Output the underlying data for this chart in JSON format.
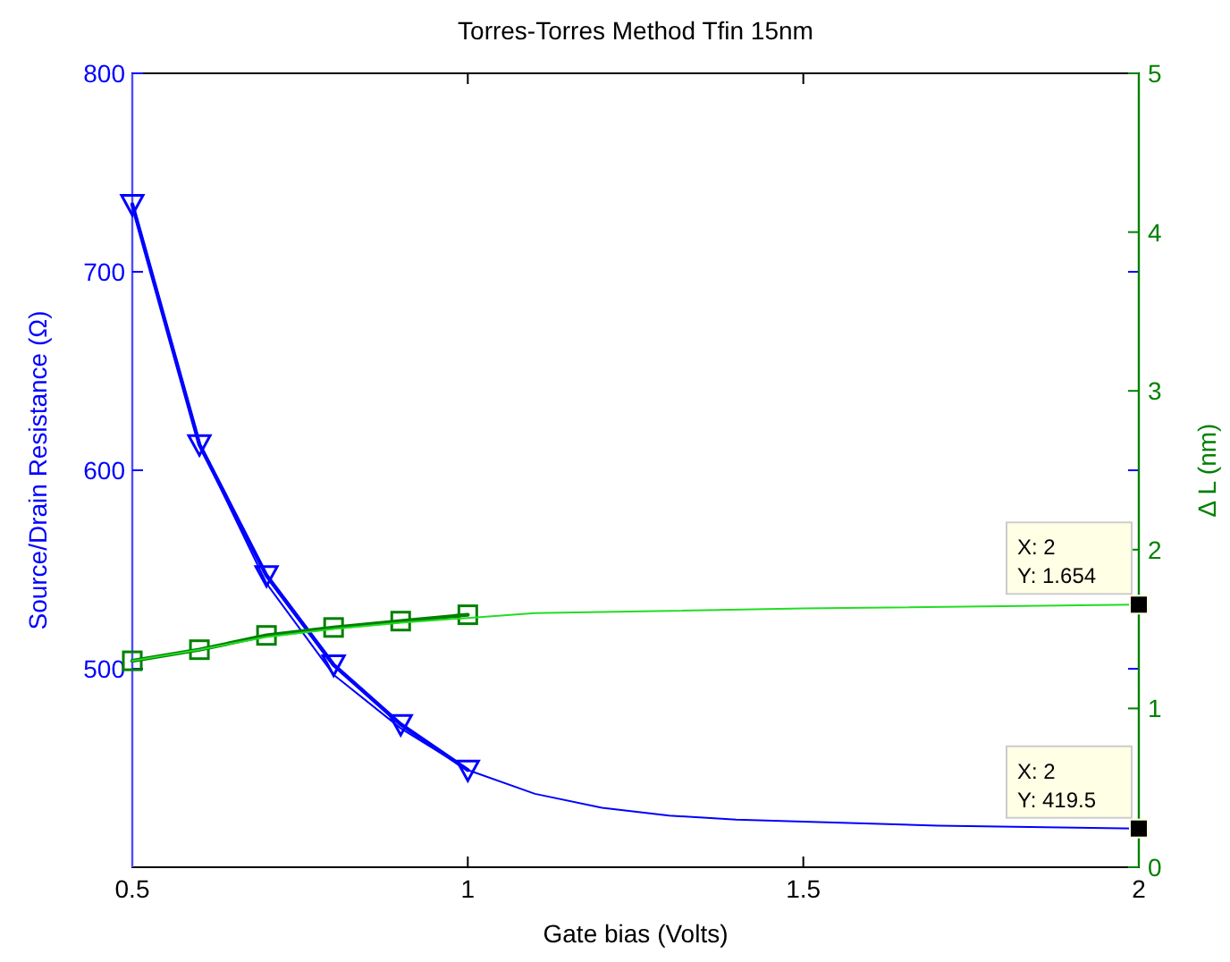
{
  "chart_data": {
    "type": "line",
    "title": "Torres-Torres Method Tfin 15nm",
    "xlabel": "Gate bias (Volts)",
    "ylabel": "Source/Drain Resistance (Ω)",
    "y2label": "Δ L (nm)",
    "xlim": [
      0.5,
      2
    ],
    "xticks": [
      0.5,
      1,
      1.5,
      2
    ],
    "ylim": [
      400,
      800
    ],
    "yticks": [
      500,
      600,
      700,
      800
    ],
    "y2lim": [
      0,
      5
    ],
    "y2ticks": [
      0,
      1,
      2,
      3,
      4,
      5
    ],
    "grid": false,
    "series": [
      {
        "color": "#0000ff",
        "x": [
          0.5,
          0.6,
          0.7,
          0.8,
          0.9,
          1.0
        ],
        "values": [
          734,
          613,
          547,
          502,
          472,
          449
        ],
        "marker": "triangle"
      },
      {
        "color": "#0000ff",
        "x": [
          0.5,
          0.6,
          0.7,
          0.8,
          0.9,
          1.0,
          1.1,
          1.2,
          1.3,
          1.4,
          1.5,
          1.7,
          2.0
        ],
        "values": [
          734,
          613,
          543,
          497,
          470,
          449,
          437,
          430,
          426,
          424,
          423,
          421,
          419.5
        ],
        "marker": "none"
      },
      {
        "color": "#008000",
        "axis": "y2",
        "x": [
          0.5,
          0.6,
          0.7,
          0.8,
          0.9,
          1.0
        ],
        "values": [
          1.3,
          1.37,
          1.46,
          1.51,
          1.55,
          1.59
        ],
        "marker": "square"
      },
      {
        "color": "#22dd22",
        "axis": "y2",
        "x": [
          0.5,
          0.6,
          0.7,
          0.8,
          0.9,
          1.0,
          1.1,
          1.5,
          2.0
        ],
        "values": [
          1.3,
          1.37,
          1.45,
          1.5,
          1.54,
          1.57,
          1.6,
          1.63,
          1.654
        ],
        "marker": "none"
      }
    ],
    "annotations": [
      {
        "text": "X: 2\nY: 1.654",
        "x": 2,
        "y": 532.3
      },
      {
        "text": "X: 2\nY: 419.5",
        "x": 2,
        "y": 419.5
      }
    ]
  }
}
